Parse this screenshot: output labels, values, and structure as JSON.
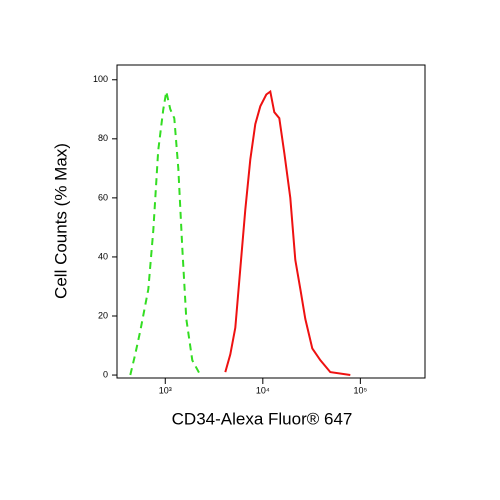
{
  "chart_data": {
    "type": "line",
    "x_label": "CD34-Alexa Fluor® 647",
    "y_label": "Cell Counts (% Max)",
    "x_scale": "log",
    "xlim": [
      320,
      460000
    ],
    "ylim": [
      -1,
      105
    ],
    "xticks": [
      {
        "value": 1000,
        "label": "10³"
      },
      {
        "value": 10000,
        "label": "10⁴"
      },
      {
        "value": 100000,
        "label": "10⁵"
      }
    ],
    "yticks": [
      0,
      20,
      40,
      60,
      80,
      100
    ],
    "series": [
      {
        "color": "#33dd22",
        "dash": true,
        "x": [
          438,
          492,
          555,
          670,
          754,
          847,
          954,
          1024,
          1125,
          1237,
          1360,
          1494,
          1642,
          1892,
          2285
        ],
        "values": [
          0,
          7,
          15,
          29,
          49,
          76,
          90,
          96,
          90,
          87,
          70,
          43,
          19,
          5,
          0
        ]
      },
      {
        "color": "#ee1111",
        "dash": false,
        "x": [
          4121,
          4645,
          5224,
          5875,
          6622,
          7447,
          8375,
          9418,
          10860,
          11940,
          13120,
          14760,
          16630,
          19150,
          21540,
          24270,
          27290,
          32190,
          38900,
          49200,
          78900
        ],
        "values": [
          1,
          7,
          16,
          36,
          56,
          73,
          85,
          91,
          95,
          96,
          89,
          87,
          75,
          60,
          39,
          29,
          19,
          9,
          5,
          1,
          0
        ]
      }
    ]
  }
}
